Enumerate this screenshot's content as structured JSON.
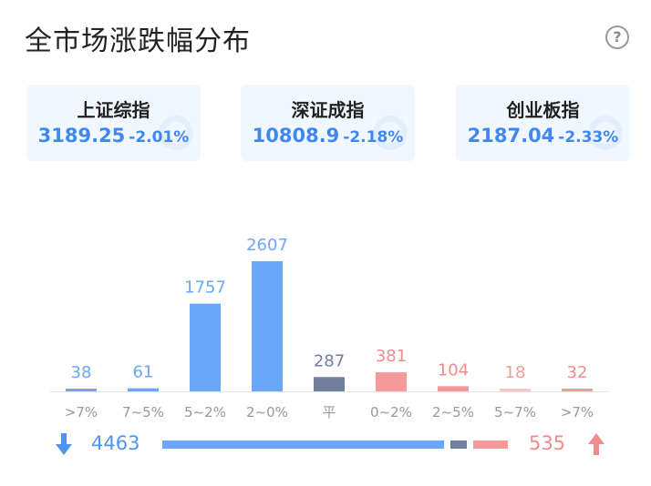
{
  "header": {
    "title": "全市场涨跌幅分布",
    "help_icon": "question-circle-icon",
    "help_glyph": "?"
  },
  "indices": [
    {
      "name": "上证综指",
      "value": "3189.25",
      "change": "-2.01%"
    },
    {
      "name": "深证成指",
      "value": "10808.9",
      "change": "-2.18%"
    },
    {
      "name": "创业板指",
      "value": "2187.04",
      "change": "-2.33%"
    }
  ],
  "chart_data": {
    "type": "bar",
    "categories": [
      ">7%",
      "7~5%",
      "5~2%",
      "2~0%",
      "平",
      "0~2%",
      "2~5%",
      "5~7%",
      ">7%"
    ],
    "values": [
      38,
      61,
      1757,
      2607,
      287,
      381,
      104,
      18,
      32
    ],
    "colors": [
      "#6aa7f7",
      "#6aa7f7",
      "#6aa7f7",
      "#6aa7f7",
      "#6f7f9c",
      "#f59a9a",
      "#f59a9a",
      "#f9c4c4",
      "#f59a9a"
    ],
    "label_colors": [
      "#6aa7f7",
      "#6aa7f7",
      "#6aa7f7",
      "#6aa7f7",
      "#6f7f9c",
      "#f18c8c",
      "#f18c8c",
      "#f59a9a",
      "#f18c8c"
    ],
    "ylim": [
      0,
      2607
    ],
    "grid": false,
    "legend": "none"
  },
  "summary": {
    "down_count": "4463",
    "up_count": "535",
    "flat_count": 287,
    "down_color": "#4f94f0",
    "up_color": "#f18c8c",
    "down_icon": "arrow-down-icon",
    "up_icon": "arrow-up-icon"
  }
}
